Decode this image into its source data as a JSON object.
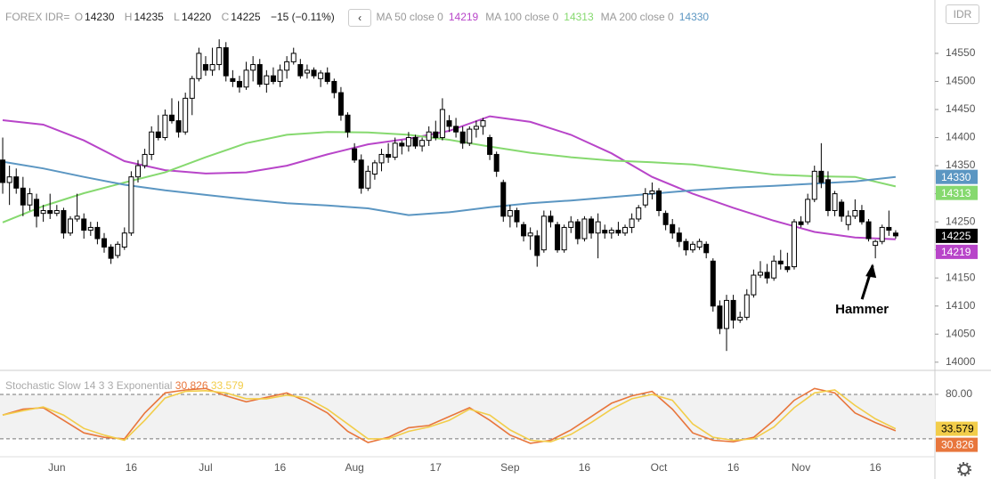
{
  "header": {
    "symbol": "FOREX IDR=",
    "ohlc_labels": [
      "O",
      "H",
      "L",
      "C"
    ],
    "change": "−15 (−0.11%)",
    "currency": "IDR"
  },
  "chart_data": [
    {
      "type": "candlestick",
      "up_color": "#ffffff",
      "down_color": "#000000",
      "xlim": [
        -0.4,
        137.8
      ],
      "ylim": [
        13987,
        14645
      ],
      "yticks": [
        14000,
        14050,
        14100,
        14150,
        14200,
        14250,
        14300,
        14350,
        14400,
        14450,
        14500,
        14550
      ],
      "xticks": [
        {
          "value": 8,
          "label": "Jun"
        },
        {
          "value": 19,
          "label": "16"
        },
        {
          "value": 30,
          "label": "Jul"
        },
        {
          "value": 41,
          "label": "16"
        },
        {
          "value": 52,
          "label": "Aug"
        },
        {
          "value": 64,
          "label": "17"
        },
        {
          "value": 75,
          "label": "Sep"
        },
        {
          "value": 86,
          "label": "16"
        },
        {
          "value": 97,
          "label": "Oct"
        },
        {
          "value": 108,
          "label": "16"
        },
        {
          "value": 118,
          "label": "Nov"
        },
        {
          "value": 129,
          "label": "16"
        }
      ],
      "ohlc": [
        [
          14360,
          14400,
          14300,
          14320
        ],
        [
          14320,
          14350,
          14280,
          14330
        ],
        [
          14330,
          14345,
          14300,
          14310
        ],
        [
          14310,
          14330,
          14260,
          14280
        ],
        [
          14280,
          14310,
          14270,
          14300
        ],
        [
          14290,
          14300,
          14240,
          14260
        ],
        [
          14265,
          14280,
          14250,
          14270
        ],
        [
          14270,
          14300,
          14255,
          14265
        ],
        [
          14265,
          14280,
          14260,
          14270
        ],
        [
          14270,
          14275,
          14220,
          14230
        ],
        [
          14230,
          14260,
          14225,
          14255
        ],
        [
          14255,
          14300,
          14250,
          14260
        ],
        [
          14255,
          14265,
          14220,
          14235
        ],
        [
          14235,
          14250,
          14225,
          14240
        ],
        [
          14240,
          14250,
          14210,
          14220
        ],
        [
          14220,
          14230,
          14195,
          14205
        ],
        [
          14205,
          14210,
          14175,
          14185
        ],
        [
          14190,
          14215,
          14185,
          14210
        ],
        [
          14205,
          14240,
          14200,
          14230
        ],
        [
          14230,
          14340,
          14225,
          14330
        ],
        [
          14330,
          14360,
          14320,
          14350
        ],
        [
          14350,
          14380,
          14345,
          14370
        ],
        [
          14370,
          14420,
          14360,
          14410
        ],
        [
          14410,
          14440,
          14395,
          14400
        ],
        [
          14400,
          14450,
          14395,
          14440
        ],
        [
          14440,
          14470,
          14425,
          14430
        ],
        [
          14430,
          14465,
          14400,
          14410
        ],
        [
          14410,
          14480,
          14405,
          14470
        ],
        [
          14470,
          14510,
          14440,
          14505
        ],
        [
          14505,
          14560,
          14500,
          14550
        ],
        [
          14530,
          14545,
          14510,
          14520
        ],
        [
          14520,
          14560,
          14510,
          14530
        ],
        [
          14530,
          14575,
          14520,
          14560
        ],
        [
          14560,
          14570,
          14500,
          14510
        ],
        [
          14505,
          14520,
          14490,
          14500
        ],
        [
          14500,
          14510,
          14480,
          14490
        ],
        [
          14490,
          14535,
          14485,
          14520
        ],
        [
          14520,
          14545,
          14500,
          14530
        ],
        [
          14530,
          14540,
          14490,
          14495
        ],
        [
          14495,
          14520,
          14480,
          14510
        ],
        [
          14510,
          14525,
          14495,
          14500
        ],
        [
          14500,
          14530,
          14490,
          14520
        ],
        [
          14520,
          14545,
          14505,
          14535
        ],
        [
          14535,
          14560,
          14530,
          14550
        ],
        [
          14530,
          14540,
          14505,
          14510
        ],
        [
          14515,
          14530,
          14505,
          14520
        ],
        [
          14520,
          14525,
          14505,
          14510
        ],
        [
          14505,
          14520,
          14490,
          14515
        ],
        [
          14515,
          14525,
          14495,
          14500
        ],
        [
          14500,
          14505,
          14470,
          14480
        ],
        [
          14480,
          14490,
          14430,
          14440
        ],
        [
          14440,
          14445,
          14400,
          14410
        ],
        [
          14380,
          14390,
          14355,
          14360
        ],
        [
          14360,
          14370,
          14300,
          14310
        ],
        [
          14310,
          14350,
          14305,
          14340
        ],
        [
          14335,
          14360,
          14325,
          14355
        ],
        [
          14355,
          14380,
          14340,
          14370
        ],
        [
          14370,
          14390,
          14355,
          14365
        ],
        [
          14365,
          14400,
          14360,
          14390
        ],
        [
          14390,
          14395,
          14370,
          14385
        ],
        [
          14385,
          14410,
          14375,
          14400
        ],
        [
          14400,
          14405,
          14380,
          14385
        ],
        [
          14385,
          14400,
          14375,
          14395
        ],
        [
          14395,
          14420,
          14385,
          14410
        ],
        [
          14410,
          14430,
          14395,
          14400
        ],
        [
          14400,
          14470,
          14395,
          14450
        ],
        [
          14430,
          14440,
          14410,
          14420
        ],
        [
          14420,
          14435,
          14400,
          14410
        ],
        [
          14410,
          14420,
          14380,
          14390
        ],
        [
          14390,
          14420,
          14385,
          14415
        ],
        [
          14415,
          14430,
          14400,
          14420
        ],
        [
          14420,
          14435,
          14405,
          14430
        ],
        [
          14400,
          14405,
          14360,
          14370
        ],
        [
          14370,
          14375,
          14330,
          14340
        ],
        [
          14320,
          14325,
          14250,
          14260
        ],
        [
          14260,
          14280,
          14240,
          14270
        ],
        [
          14270,
          14275,
          14240,
          14250
        ],
        [
          14245,
          14250,
          14215,
          14225
        ],
        [
          14225,
          14240,
          14200,
          14230
        ],
        [
          14225,
          14235,
          14170,
          14190
        ],
        [
          14200,
          14270,
          14195,
          14260
        ],
        [
          14260,
          14270,
          14240,
          14250
        ],
        [
          14245,
          14250,
          14195,
          14200
        ],
        [
          14200,
          14245,
          14195,
          14240
        ],
        [
          14240,
          14260,
          14230,
          14250
        ],
        [
          14250,
          14255,
          14210,
          14220
        ],
        [
          14220,
          14260,
          14215,
          14255
        ],
        [
          14255,
          14260,
          14220,
          14230
        ],
        [
          14230,
          14265,
          14185,
          14250
        ],
        [
          14235,
          14245,
          14220,
          14230
        ],
        [
          14230,
          14240,
          14220,
          14235
        ],
        [
          14235,
          14250,
          14225,
          14230
        ],
        [
          14230,
          14245,
          14225,
          14240
        ],
        [
          14240,
          14265,
          14230,
          14255
        ],
        [
          14255,
          14280,
          14250,
          14275
        ],
        [
          14280,
          14310,
          14275,
          14300
        ],
        [
          14300,
          14320,
          14290,
          14305
        ],
        [
          14305,
          14310,
          14260,
          14270
        ],
        [
          14265,
          14270,
          14235,
          14245
        ],
        [
          14245,
          14255,
          14220,
          14230
        ],
        [
          14230,
          14240,
          14205,
          14215
        ],
        [
          14215,
          14220,
          14190,
          14200
        ],
        [
          14200,
          14215,
          14195,
          14210
        ],
        [
          14205,
          14220,
          14200,
          14215
        ],
        [
          14210,
          14215,
          14185,
          14195
        ],
        [
          14180,
          14185,
          14090,
          14100
        ],
        [
          14100,
          14110,
          14050,
          14060
        ],
        [
          14060,
          14120,
          14020,
          14110
        ],
        [
          14110,
          14120,
          14060,
          14075
        ],
        [
          14075,
          14090,
          14070,
          14080
        ],
        [
          14080,
          14130,
          14075,
          14120
        ],
        [
          14120,
          14165,
          14115,
          14155
        ],
        [
          14155,
          14180,
          14150,
          14160
        ],
        [
          14160,
          14175,
          14140,
          14150
        ],
        [
          14150,
          14190,
          14145,
          14180
        ],
        [
          14180,
          14200,
          14165,
          14175
        ],
        [
          14170,
          14195,
          14160,
          14165
        ],
        [
          14170,
          14255,
          14165,
          14250
        ],
        [
          14250,
          14260,
          14240,
          14245
        ],
        [
          14250,
          14300,
          14245,
          14290
        ],
        [
          14290,
          14350,
          14285,
          14340
        ],
        [
          14340,
          14390,
          14310,
          14320
        ],
        [
          14325,
          14340,
          14260,
          14270
        ],
        [
          14270,
          14305,
          14260,
          14300
        ],
        [
          14285,
          14290,
          14250,
          14260
        ],
        [
          14245,
          14270,
          14235,
          14260
        ],
        [
          14260,
          14290,
          14255,
          14270
        ],
        [
          14270,
          14280,
          14245,
          14250
        ],
        [
          14250,
          14255,
          14215,
          14220
        ],
        [
          14208,
          14218,
          14185,
          14215
        ],
        [
          14215,
          14245,
          14210,
          14240
        ],
        [
          14240,
          14270,
          14225,
          14235
        ],
        [
          14230,
          14235,
          14220,
          14225
        ]
      ],
      "series": [
        {
          "name": "MA 50 close 0",
          "color": "#b845c9",
          "x": [
            0,
            6,
            12,
            18,
            24,
            30,
            36,
            42,
            48,
            54,
            60,
            66,
            72,
            78,
            84,
            90,
            96,
            102,
            108,
            114,
            120,
            126,
            132
          ],
          "values": [
            14431,
            14423,
            14395,
            14358,
            14342,
            14336,
            14338,
            14350,
            14370,
            14388,
            14398,
            14412,
            14438,
            14428,
            14405,
            14372,
            14330,
            14300,
            14275,
            14252,
            14232,
            14222,
            14219
          ]
        },
        {
          "name": "MA 100 close 0",
          "color": "#86d96f",
          "x": [
            0,
            6,
            12,
            18,
            24,
            30,
            36,
            42,
            48,
            54,
            60,
            66,
            72,
            78,
            84,
            90,
            96,
            102,
            108,
            114,
            120,
            126,
            132
          ],
          "values": [
            14249,
            14278,
            14301,
            14320,
            14338,
            14365,
            14390,
            14405,
            14410,
            14409,
            14405,
            14396,
            14384,
            14373,
            14365,
            14359,
            14356,
            14352,
            14343,
            14334,
            14331,
            14330,
            14313
          ]
        },
        {
          "name": "MA 200 close 0",
          "color": "#5b96c2",
          "x": [
            0,
            6,
            12,
            18,
            24,
            30,
            36,
            42,
            48,
            54,
            60,
            66,
            72,
            78,
            84,
            90,
            96,
            102,
            108,
            114,
            120,
            126,
            132
          ],
          "values": [
            14357,
            14345,
            14330,
            14316,
            14306,
            14298,
            14290,
            14283,
            14279,
            14274,
            14262,
            14267,
            14276,
            14283,
            14288,
            14294,
            14300,
            14306,
            14311,
            14314,
            14318,
            14322,
            14330
          ]
        }
      ],
      "annotation": {
        "text": "Hammer",
        "x": 129
      }
    },
    {
      "type": "line",
      "title": "Stochastic Slow 14 3 3 Exponential",
      "xlim": [
        -0.4,
        137.8
      ],
      "ylim": [
        -3,
        110
      ],
      "yticks": [
        {
          "value": 80,
          "label": "80.00"
        }
      ],
      "levels": [
        20,
        80
      ],
      "series": [
        {
          "color": "#e8763c",
          "x": [
            0,
            3,
            6,
            9,
            12,
            15,
            18,
            21,
            24,
            27,
            30,
            33,
            36,
            39,
            42,
            45,
            48,
            51,
            54,
            57,
            60,
            63,
            66,
            69,
            72,
            75,
            78,
            81,
            84,
            87,
            90,
            93,
            96,
            99,
            102,
            105,
            108,
            111,
            114,
            117,
            120,
            123,
            126,
            129,
            132
          ],
          "values": [
            52,
            60,
            62,
            45,
            28,
            22,
            20,
            55,
            82,
            86,
            88,
            78,
            70,
            76,
            82,
            70,
            55,
            30,
            15,
            22,
            35,
            38,
            50,
            62,
            45,
            25,
            14,
            18,
            32,
            50,
            68,
            78,
            84,
            60,
            28,
            18,
            16,
            22,
            45,
            72,
            88,
            82,
            55,
            42,
            30.826
          ]
        },
        {
          "color": "#f2cd4a",
          "x": [
            0,
            3,
            6,
            9,
            12,
            15,
            18,
            21,
            24,
            27,
            30,
            33,
            36,
            39,
            42,
            45,
            48,
            51,
            54,
            57,
            60,
            63,
            66,
            69,
            72,
            75,
            78,
            81,
            84,
            87,
            90,
            93,
            96,
            99,
            102,
            105,
            108,
            111,
            114,
            117,
            120,
            123,
            126,
            129,
            132
          ],
          "values": [
            52,
            58,
            63,
            52,
            34,
            25,
            18,
            45,
            75,
            84,
            85,
            82,
            74,
            74,
            79,
            75,
            60,
            40,
            20,
            20,
            30,
            36,
            45,
            60,
            52,
            32,
            18,
            16,
            26,
            42,
            60,
            74,
            80,
            72,
            40,
            22,
            18,
            20,
            36,
            62,
            82,
            86,
            65,
            47,
            33.579
          ]
        }
      ]
    }
  ]
}
